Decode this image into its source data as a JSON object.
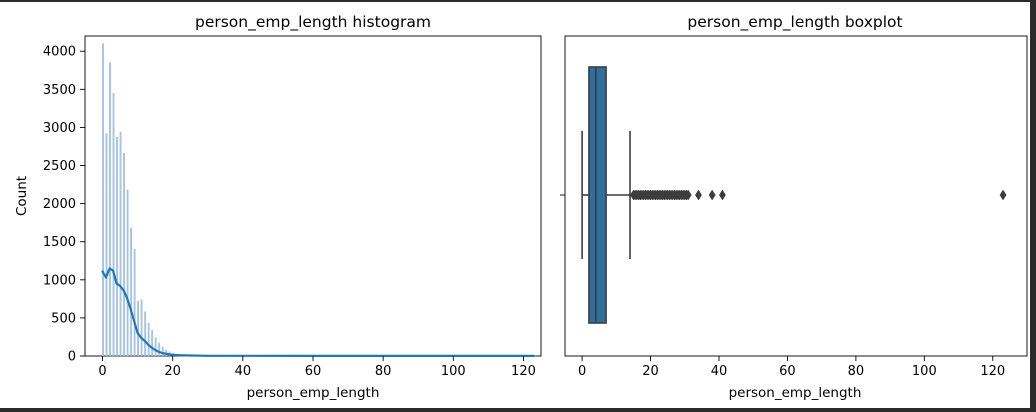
{
  "chart_data": [
    {
      "type": "bar",
      "title": "person_emp_length histogram",
      "xlabel": "person_emp_length",
      "ylabel": "Count",
      "xlim": [
        -5,
        125
      ],
      "ylim": [
        0,
        4200
      ],
      "xticks": [
        0,
        20,
        40,
        60,
        80,
        100,
        120
      ],
      "yticks": [
        0,
        500,
        1000,
        1500,
        2000,
        2500,
        3000,
        3500,
        4000
      ],
      "bar_color": "#aec7e8",
      "bars": [
        {
          "x": 0,
          "count": 4100
        },
        {
          "x": 1,
          "count": 2920
        },
        {
          "x": 2,
          "count": 3850
        },
        {
          "x": 3,
          "count": 3450
        },
        {
          "x": 4,
          "count": 2870
        },
        {
          "x": 5,
          "count": 2940
        },
        {
          "x": 6,
          "count": 2660
        },
        {
          "x": 7,
          "count": 2180
        },
        {
          "x": 8,
          "count": 1680
        },
        {
          "x": 9,
          "count": 1400
        },
        {
          "x": 10,
          "count": 720
        },
        {
          "x": 11,
          "count": 740
        },
        {
          "x": 12,
          "count": 580
        },
        {
          "x": 13,
          "count": 430
        },
        {
          "x": 14,
          "count": 340
        },
        {
          "x": 15,
          "count": 240
        },
        {
          "x": 16,
          "count": 170
        },
        {
          "x": 17,
          "count": 120
        },
        {
          "x": 18,
          "count": 80
        },
        {
          "x": 19,
          "count": 55
        },
        {
          "x": 20,
          "count": 40
        },
        {
          "x": 21,
          "count": 25
        },
        {
          "x": 22,
          "count": 15
        },
        {
          "x": 23,
          "count": 10
        },
        {
          "x": 24,
          "count": 8
        },
        {
          "x": 25,
          "count": 8
        },
        {
          "x": 26,
          "count": 5
        },
        {
          "x": 27,
          "count": 5
        },
        {
          "x": 28,
          "count": 4
        },
        {
          "x": 29,
          "count": 3
        },
        {
          "x": 30,
          "count": 3
        },
        {
          "x": 31,
          "count": 2
        },
        {
          "x": 34,
          "count": 1
        },
        {
          "x": 38,
          "count": 1
        },
        {
          "x": 41,
          "count": 1
        },
        {
          "x": 123,
          "count": 2
        }
      ],
      "kde": {
        "name": "kde",
        "color": "#1f77b4",
        "points": [
          [
            0,
            1110
          ],
          [
            1,
            1030
          ],
          [
            2,
            1150
          ],
          [
            3,
            1120
          ],
          [
            4,
            950
          ],
          [
            5,
            920
          ],
          [
            6,
            860
          ],
          [
            7,
            760
          ],
          [
            8,
            620
          ],
          [
            9,
            460
          ],
          [
            10,
            300
          ],
          [
            11,
            240
          ],
          [
            12,
            200
          ],
          [
            13,
            150
          ],
          [
            14,
            110
          ],
          [
            15,
            80
          ],
          [
            16,
            55
          ],
          [
            17,
            40
          ],
          [
            18,
            30
          ],
          [
            19,
            22
          ],
          [
            20,
            15
          ],
          [
            22,
            10
          ],
          [
            25,
            6
          ],
          [
            30,
            3
          ],
          [
            40,
            2
          ],
          [
            60,
            1
          ],
          [
            80,
            1
          ],
          [
            100,
            1
          ],
          [
            123,
            1
          ]
        ]
      }
    },
    {
      "type": "boxplot",
      "title": "person_emp_length boxplot",
      "xlabel": "person_emp_length",
      "xlim": [
        -5,
        130
      ],
      "xticks": [
        0,
        20,
        40,
        60,
        80,
        100,
        120
      ],
      "box_color": "#2f6f9f",
      "q1": 2,
      "median": 4,
      "q3": 7,
      "whisker_low": 0,
      "whisker_high": 14,
      "outliers": [
        15,
        15.5,
        16,
        16.5,
        17,
        17.5,
        18,
        18.5,
        19,
        19.5,
        20,
        20.5,
        21,
        21.5,
        22,
        22.5,
        23,
        23.5,
        24,
        24.5,
        25,
        25.5,
        26,
        26.5,
        27,
        27.5,
        28,
        28.5,
        29,
        29.5,
        30,
        30.5,
        31,
        34,
        38,
        41,
        123
      ]
    }
  ]
}
